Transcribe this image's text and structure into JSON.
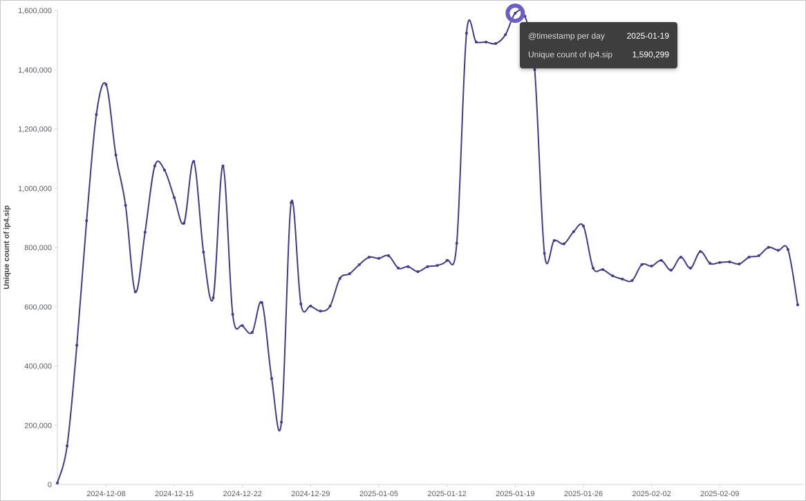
{
  "chart_data": {
    "type": "line",
    "title": "",
    "xlabel": "",
    "ylabel": "Unique count of ip4.sip",
    "ylim": [
      0,
      1600000
    ],
    "yticks": [
      0,
      200000,
      400000,
      600000,
      800000,
      1000000,
      1200000,
      1400000,
      1600000
    ],
    "ytick_labels": [
      "0",
      "200,000",
      "400,000",
      "600,000",
      "800,000",
      "1,000,000",
      "1,200,000",
      "1,400,000",
      "1,600,000"
    ],
    "xticks": [
      "2024-12-08",
      "2024-12-15",
      "2024-12-22",
      "2024-12-29",
      "2025-01-05",
      "2025-01-12",
      "2025-01-19",
      "2025-01-26",
      "2025-02-02",
      "2025-02-09"
    ],
    "xlim": [
      "2024-12-03",
      "2025-02-17"
    ],
    "grid": false,
    "line_color": "#3f3a8a",
    "highlight_color": "#6a5fc8",
    "x_start": "2024-12-03",
    "values": [
      5000,
      130000,
      470000,
      890000,
      1248000,
      1350000,
      1112000,
      942000,
      650000,
      851000,
      1075000,
      1061000,
      968000,
      882000,
      1090000,
      784000,
      630000,
      1075000,
      574000,
      536000,
      513000,
      613000,
      357000,
      210000,
      951000,
      609000,
      602000,
      585000,
      602000,
      695000,
      711000,
      742000,
      767000,
      763000,
      772000,
      730000,
      735000,
      718000,
      735000,
      739000,
      756000,
      814000,
      1523000,
      1493000,
      1493000,
      1488000,
      1518000,
      1590299,
      1580000,
      1400000,
      780000,
      823000,
      812000,
      853000,
      872000,
      730000,
      725000,
      704000,
      693000,
      688000,
      742000,
      737000,
      756000,
      723000,
      767000,
      730000,
      786000,
      746000,
      749000,
      751000,
      744000,
      767000,
      772000,
      800000,
      790000,
      793000,
      606000
    ],
    "highlighted": {
      "date": "2025-01-19",
      "value": 1590299
    }
  },
  "tooltip": {
    "x_label": "@timestamp per day",
    "x_value": "2025-01-19",
    "y_label": "Unique count of ip4.sip",
    "y_value": "1,590,299"
  }
}
